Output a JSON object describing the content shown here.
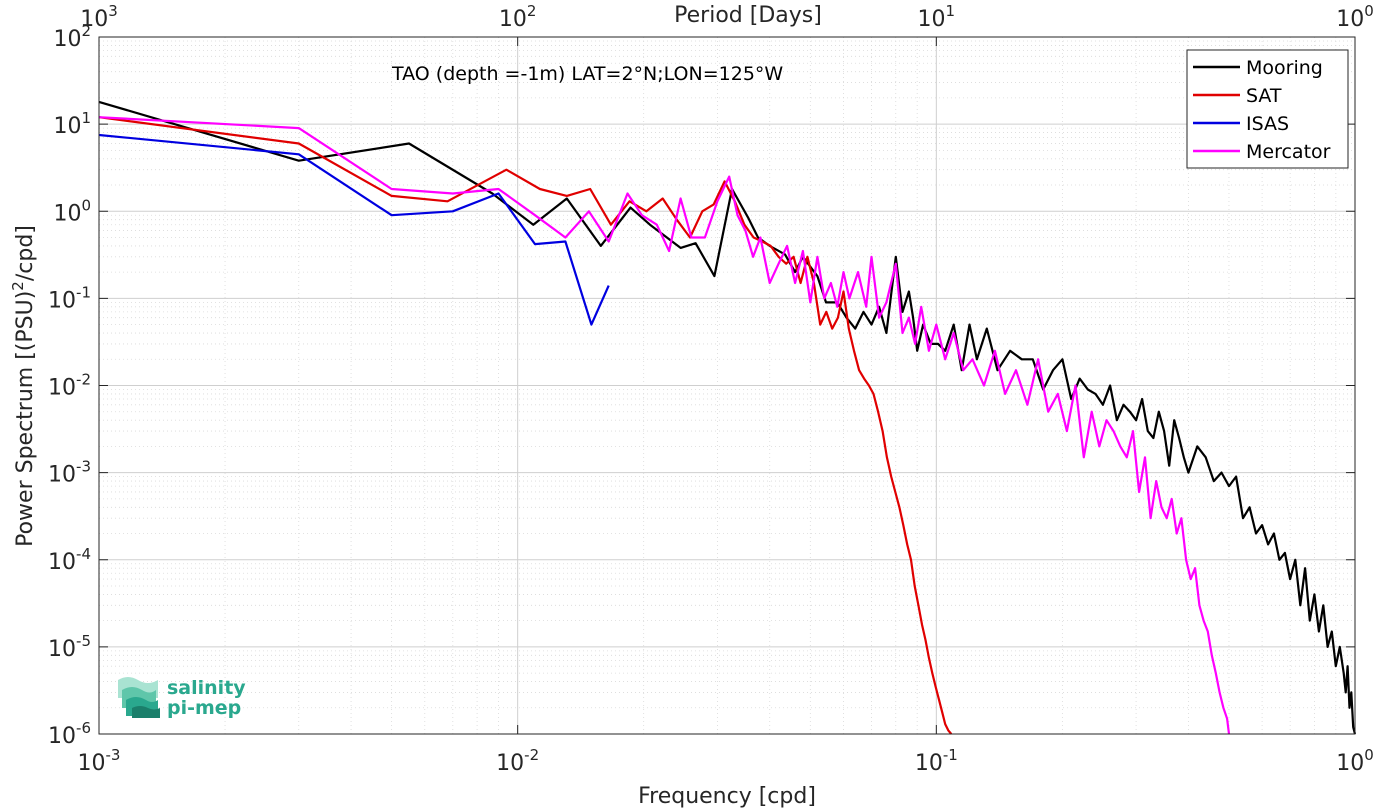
{
  "chart_data": {
    "type": "line",
    "title": "TAO (depth =-1m) LAT=2°N;LON=125°W",
    "xlabel": "Frequency [cpd]",
    "ylabel_main": "Power Spectrum [(PSU)",
    "ylabel_sup": "2",
    "ylabel_tail": "/cpd]",
    "top_xlabel": "Period [Days]",
    "x_scale": "log",
    "y_scale": "log",
    "xlim": [
      0.001,
      1
    ],
    "ylim": [
      1e-06,
      100
    ],
    "grid": true,
    "minor_grid": true,
    "legend_position": "top-right",
    "x_ticks": [
      {
        "value": 0.001,
        "base": "10",
        "exp": "-3"
      },
      {
        "value": 0.01,
        "base": "10",
        "exp": "-2"
      },
      {
        "value": 0.1,
        "base": "10",
        "exp": "-1"
      },
      {
        "value": 1,
        "base": "10",
        "exp": "0"
      }
    ],
    "top_ticks": [
      {
        "value": 0.001,
        "base": "10",
        "exp": "3"
      },
      {
        "value": 0.01,
        "base": "10",
        "exp": "2"
      },
      {
        "value": 0.1,
        "base": "10",
        "exp": "1"
      },
      {
        "value": 1,
        "base": "10",
        "exp": "0"
      }
    ],
    "y_ticks": [
      {
        "value": 100,
        "base": "10",
        "exp": "2"
      },
      {
        "value": 10,
        "base": "10",
        "exp": "1"
      },
      {
        "value": 1,
        "base": "10",
        "exp": "0"
      },
      {
        "value": 0.1,
        "base": "10",
        "exp": "-1"
      },
      {
        "value": 0.01,
        "base": "10",
        "exp": "-2"
      },
      {
        "value": 0.001,
        "base": "10",
        "exp": "-3"
      },
      {
        "value": 0.0001,
        "base": "10",
        "exp": "-4"
      },
      {
        "value": 1e-05,
        "base": "10",
        "exp": "-5"
      },
      {
        "value": 1e-06,
        "base": "10",
        "exp": "-6"
      }
    ],
    "series": [
      {
        "name": "Mooring",
        "color": "#000000",
        "x": [
          0.001,
          0.003,
          0.0055,
          0.0087,
          0.0109,
          0.0131,
          0.0158,
          0.0186,
          0.0207,
          0.0245,
          0.0266,
          0.0295,
          0.0325,
          0.0355,
          0.0375,
          0.04,
          0.0435,
          0.046,
          0.048,
          0.052,
          0.0545,
          0.058,
          0.061,
          0.064,
          0.067,
          0.07,
          0.073,
          0.076,
          0.08,
          0.083,
          0.086,
          0.088,
          0.09,
          0.093,
          0.097,
          0.101,
          0.105,
          0.11,
          0.115,
          0.12,
          0.125,
          0.132,
          0.14,
          0.15,
          0.16,
          0.17,
          0.18,
          0.19,
          0.2,
          0.21,
          0.22,
          0.23,
          0.24,
          0.25,
          0.26,
          0.27,
          0.28,
          0.29,
          0.3,
          0.31,
          0.32,
          0.33,
          0.34,
          0.35,
          0.36,
          0.37,
          0.38,
          0.39,
          0.4,
          0.42,
          0.44,
          0.46,
          0.48,
          0.5,
          0.52,
          0.54,
          0.56,
          0.58,
          0.6,
          0.62,
          0.64,
          0.66,
          0.68,
          0.7,
          0.72,
          0.74,
          0.76,
          0.78,
          0.8,
          0.82,
          0.84,
          0.86,
          0.88,
          0.9,
          0.92,
          0.94,
          0.95,
          0.96,
          0.97,
          0.98,
          0.99,
          1.0
        ],
        "y": [
          18,
          3.8,
          6,
          1.6,
          0.7,
          1.4,
          0.4,
          1.1,
          0.7,
          0.38,
          0.43,
          0.18,
          1.8,
          0.85,
          0.5,
          0.4,
          0.32,
          0.2,
          0.3,
          0.18,
          0.09,
          0.09,
          0.06,
          0.045,
          0.07,
          0.05,
          0.08,
          0.04,
          0.3,
          0.07,
          0.12,
          0.06,
          0.025,
          0.05,
          0.03,
          0.03,
          0.025,
          0.05,
          0.015,
          0.05,
          0.02,
          0.045,
          0.015,
          0.025,
          0.02,
          0.02,
          0.009,
          0.015,
          0.02,
          0.007,
          0.012,
          0.009,
          0.008,
          0.006,
          0.01,
          0.004,
          0.006,
          0.005,
          0.004,
          0.007,
          0.003,
          0.0025,
          0.005,
          0.003,
          0.0012,
          0.004,
          0.0025,
          0.0015,
          0.001,
          0.002,
          0.0015,
          0.0008,
          0.001,
          0.0007,
          0.0009,
          0.0003,
          0.0004,
          0.0002,
          0.00025,
          0.00015,
          0.0002,
          0.0001,
          0.00012,
          6e-05,
          0.0001,
          3e-05,
          8e-05,
          2e-05,
          4e-05,
          1.5e-05,
          3e-05,
          1e-05,
          1.5e-05,
          6e-06,
          1e-05,
          5e-06,
          3e-06,
          6e-06,
          2e-06,
          3e-06,
          1.2e-06,
          1e-06
        ]
      },
      {
        "name": "SAT",
        "color": "#e00000",
        "x": [
          0.001,
          0.003,
          0.005,
          0.0068,
          0.0094,
          0.0113,
          0.0131,
          0.0149,
          0.0167,
          0.0185,
          0.0203,
          0.0222,
          0.024,
          0.0258,
          0.0276,
          0.0294,
          0.0312,
          0.033,
          0.0348,
          0.0366,
          0.0384,
          0.0402,
          0.042,
          0.0438,
          0.0456,
          0.0474,
          0.0492,
          0.051,
          0.0528,
          0.0546,
          0.0564,
          0.0582,
          0.06,
          0.0618,
          0.0636,
          0.0654,
          0.0672,
          0.069,
          0.0708,
          0.0726,
          0.0744,
          0.0762,
          0.078,
          0.0798,
          0.0816,
          0.0834,
          0.0852,
          0.087,
          0.0888,
          0.0906,
          0.0924,
          0.0942,
          0.096,
          0.0978,
          0.0996,
          0.1014,
          0.1032,
          0.105,
          0.1068,
          0.1086
        ],
        "y": [
          12,
          6,
          1.5,
          1.3,
          3,
          1.8,
          1.5,
          1.8,
          0.7,
          1.3,
          1.0,
          1.4,
          0.8,
          0.5,
          1.0,
          1.2,
          2.2,
          1.3,
          0.7,
          0.5,
          0.45,
          0.4,
          0.3,
          0.25,
          0.3,
          0.15,
          0.3,
          0.15,
          0.05,
          0.07,
          0.045,
          0.06,
          0.12,
          0.045,
          0.025,
          0.015,
          0.012,
          0.01,
          0.008,
          0.005,
          0.003,
          0.0015,
          0.0009,
          0.0006,
          0.0004,
          0.00025,
          0.00015,
          0.0001,
          5e-05,
          3e-05,
          1.8e-05,
          1.2e-05,
          7.5e-06,
          5e-06,
          3.5e-06,
          2.5e-06,
          1.8e-06,
          1.3e-06,
          1.1e-06,
          1e-06
        ]
      },
      {
        "name": "ISAS",
        "color": "#0000e0",
        "x": [
          0.001,
          0.003,
          0.005,
          0.007,
          0.009,
          0.011,
          0.013,
          0.015,
          0.0165
        ],
        "y": [
          7.5,
          4.5,
          0.9,
          1.0,
          1.6,
          0.42,
          0.45,
          0.05,
          0.14
        ]
      },
      {
        "name": "Mercator",
        "color": "#ff00ff",
        "x": [
          0.001,
          0.003,
          0.005,
          0.007,
          0.009,
          0.011,
          0.013,
          0.0148,
          0.0165,
          0.0183,
          0.0198,
          0.0215,
          0.023,
          0.0245,
          0.026,
          0.028,
          0.03,
          0.032,
          0.0335,
          0.035,
          0.0365,
          0.038,
          0.04,
          0.042,
          0.044,
          0.046,
          0.048,
          0.05,
          0.052,
          0.054,
          0.056,
          0.058,
          0.06,
          0.062,
          0.065,
          0.068,
          0.07,
          0.073,
          0.076,
          0.08,
          0.083,
          0.086,
          0.089,
          0.092,
          0.096,
          0.1,
          0.105,
          0.11,
          0.116,
          0.122,
          0.13,
          0.138,
          0.146,
          0.155,
          0.165,
          0.175,
          0.185,
          0.195,
          0.205,
          0.215,
          0.225,
          0.235,
          0.245,
          0.255,
          0.265,
          0.275,
          0.285,
          0.295,
          0.305,
          0.315,
          0.325,
          0.335,
          0.345,
          0.355,
          0.365,
          0.375,
          0.385,
          0.395,
          0.405,
          0.415,
          0.425,
          0.435,
          0.445,
          0.455,
          0.465,
          0.475,
          0.485,
          0.495,
          0.5
        ],
        "y": [
          12,
          9,
          1.8,
          1.6,
          1.8,
          0.9,
          0.5,
          1.0,
          0.45,
          1.6,
          0.9,
          0.7,
          0.35,
          1.4,
          0.5,
          0.5,
          1.3,
          2.5,
          0.9,
          0.6,
          0.3,
          0.5,
          0.15,
          0.25,
          0.4,
          0.15,
          0.35,
          0.09,
          0.3,
          0.1,
          0.15,
          0.08,
          0.2,
          0.1,
          0.2,
          0.08,
          0.3,
          0.06,
          0.09,
          0.25,
          0.04,
          0.06,
          0.03,
          0.08,
          0.025,
          0.05,
          0.02,
          0.04,
          0.015,
          0.02,
          0.01,
          0.025,
          0.008,
          0.015,
          0.006,
          0.02,
          0.005,
          0.008,
          0.003,
          0.01,
          0.0015,
          0.005,
          0.002,
          0.004,
          0.003,
          0.002,
          0.0015,
          0.003,
          0.0006,
          0.0015,
          0.0003,
          0.0008,
          0.0004,
          0.0003,
          0.0005,
          0.0002,
          0.0003,
          0.0001,
          6e-05,
          8e-05,
          3e-05,
          2e-05,
          1.5e-05,
          8e-06,
          5e-06,
          3e-06,
          2e-06,
          1.5e-06,
          1e-06
        ]
      }
    ]
  },
  "logo": {
    "line1": "salinity",
    "line2": "pi-mep",
    "color": "#2aa88e"
  }
}
